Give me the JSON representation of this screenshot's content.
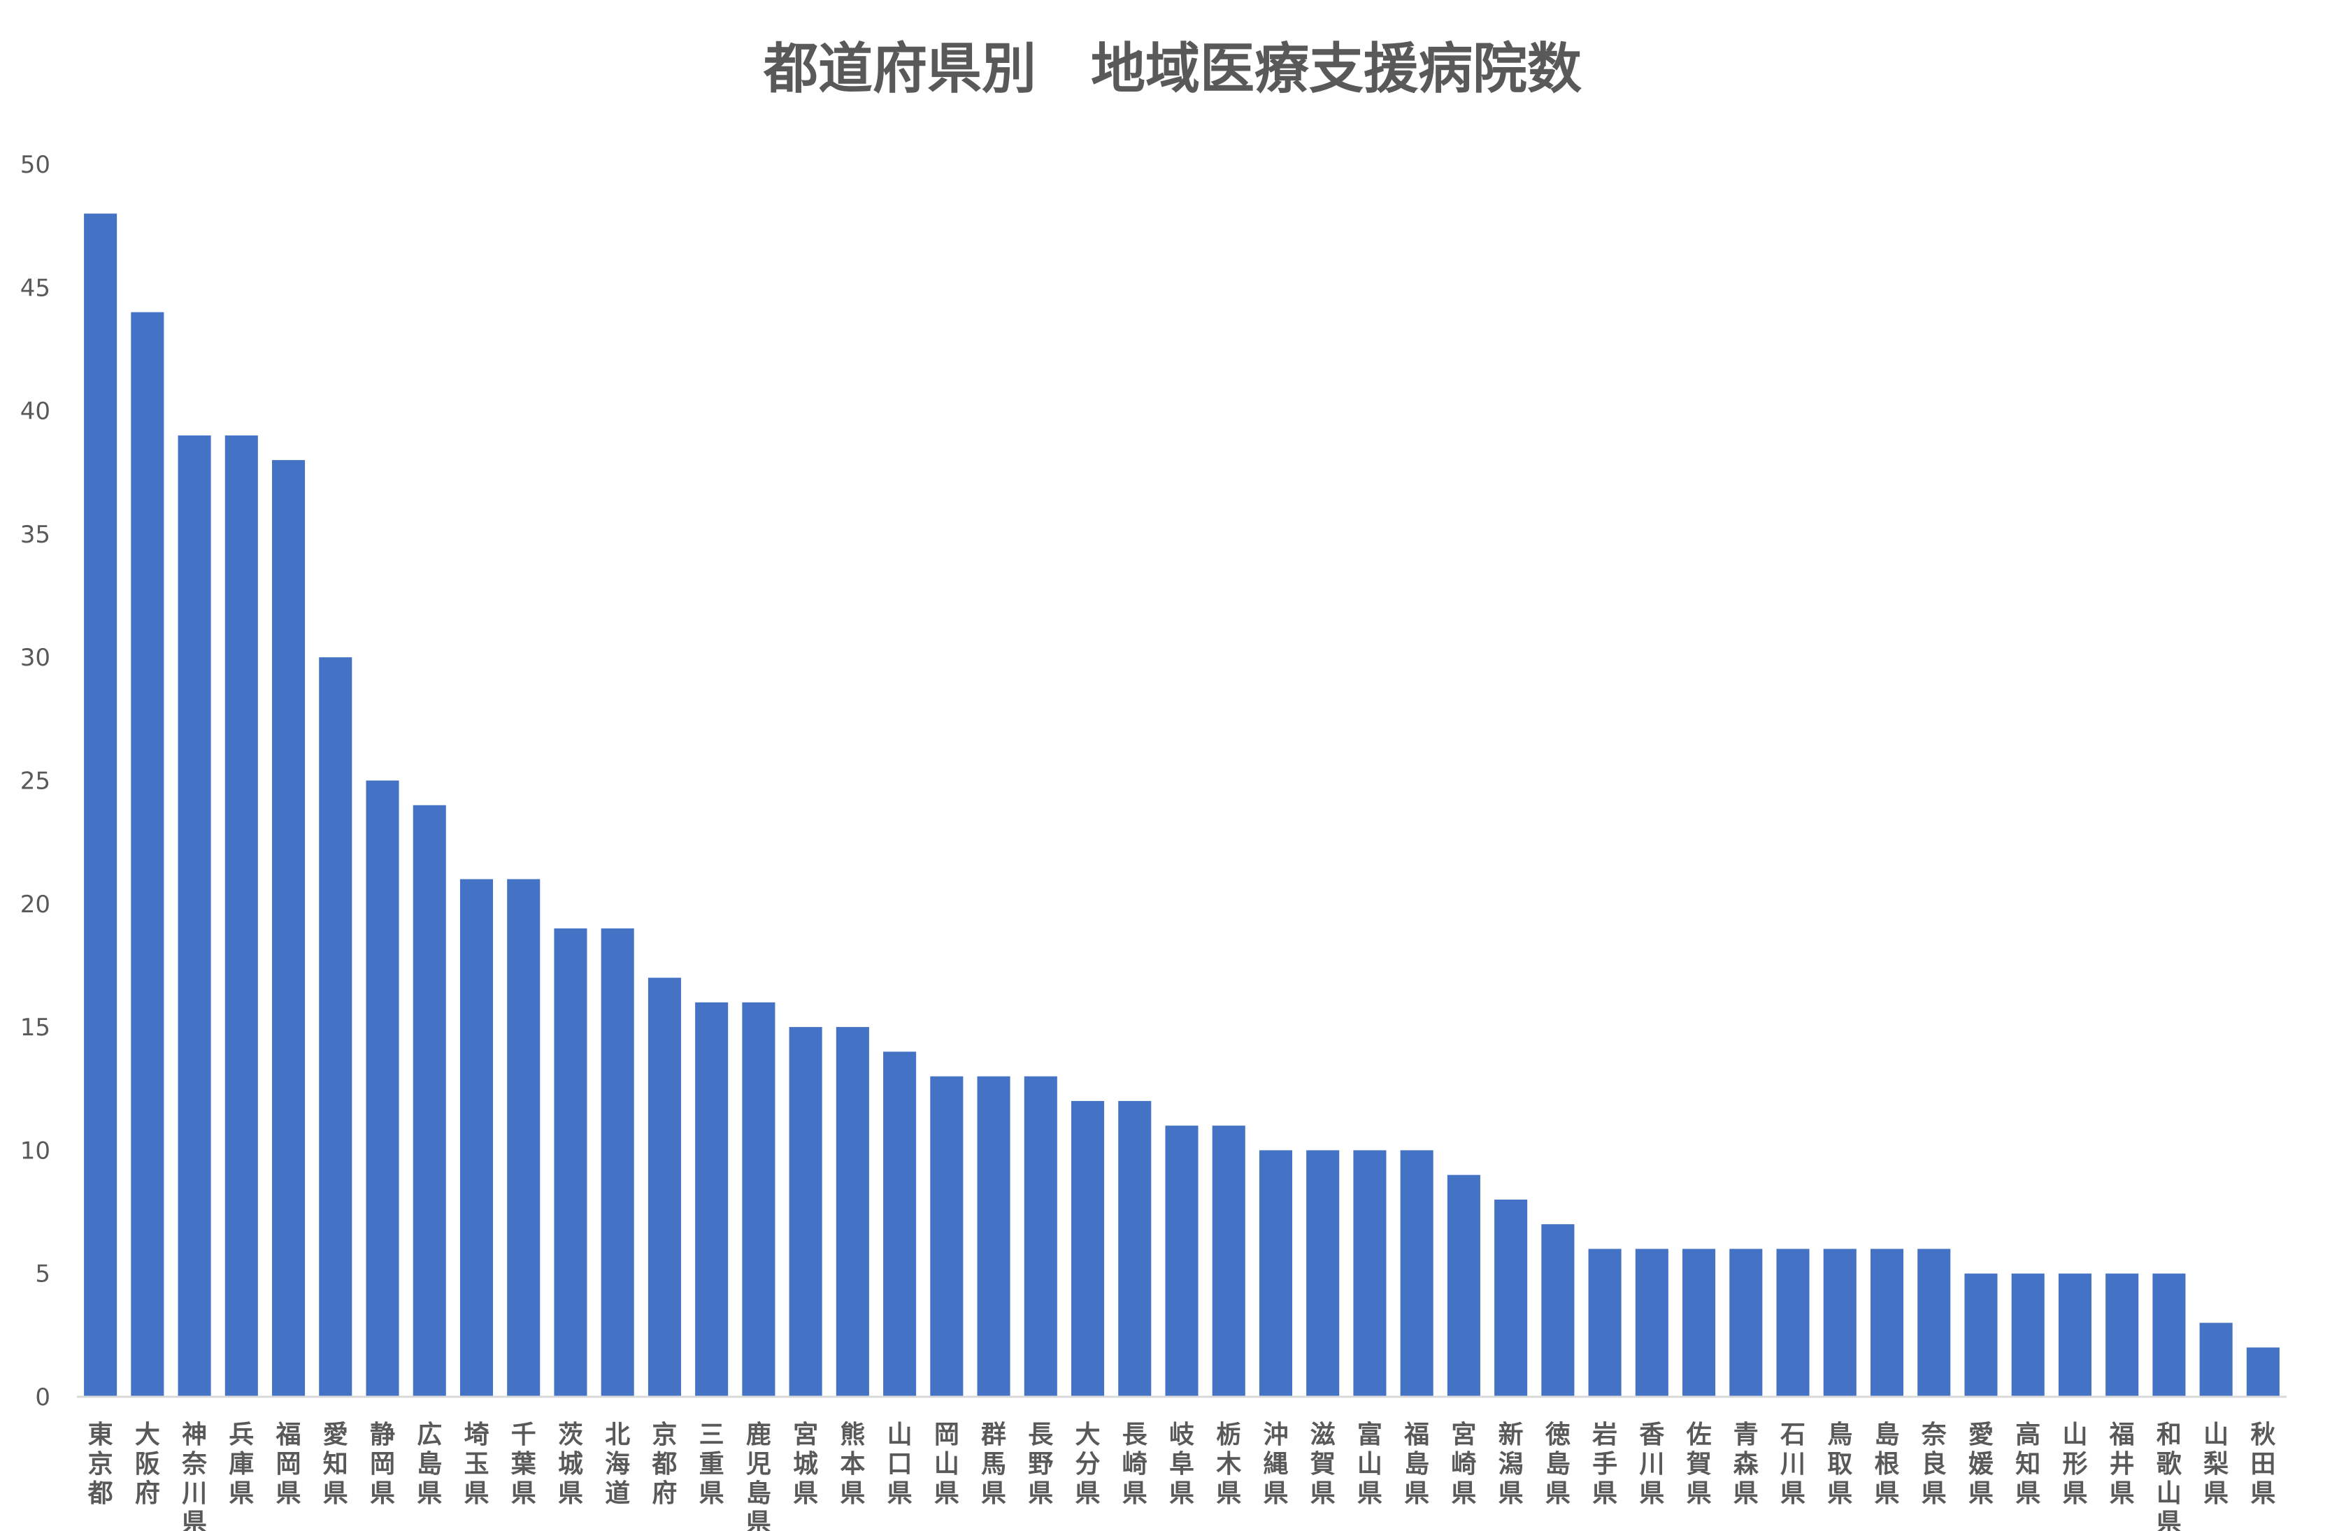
{
  "chart_data": {
    "type": "bar",
    "title": "都道府県別　地域医療支援病院数",
    "xlabel": "",
    "ylabel": "",
    "ylim": [
      0,
      50
    ],
    "yticks": [
      0,
      5,
      10,
      15,
      20,
      25,
      30,
      35,
      40,
      45,
      50
    ],
    "grid": false,
    "legend": "none",
    "bar_color": "#4472C4",
    "categories": [
      "東京都",
      "大阪府",
      "神奈川県",
      "兵庫県",
      "福岡県",
      "愛知県",
      "静岡県",
      "広島県",
      "埼玉県",
      "千葉県",
      "茨城県",
      "北海道",
      "京都府",
      "三重県",
      "鹿児島県",
      "宮城県",
      "熊本県",
      "山口県",
      "岡山県",
      "群馬県",
      "長野県",
      "大分県",
      "長崎県",
      "岐阜県",
      "栃木県",
      "沖縄県",
      "滋賀県",
      "富山県",
      "福島県",
      "宮崎県",
      "新潟県",
      "徳島県",
      "岩手県",
      "香川県",
      "佐賀県",
      "青森県",
      "石川県",
      "鳥取県",
      "島根県",
      "奈良県",
      "愛媛県",
      "高知県",
      "山形県",
      "福井県",
      "和歌山県",
      "山梨県",
      "秋田県"
    ],
    "values": [
      48,
      44,
      39,
      39,
      38,
      30,
      25,
      24,
      21,
      21,
      19,
      19,
      17,
      16,
      16,
      15,
      15,
      14,
      13,
      13,
      13,
      12,
      12,
      11,
      11,
      10,
      10,
      10,
      10,
      9,
      8,
      7,
      6,
      6,
      6,
      6,
      6,
      6,
      6,
      6,
      5,
      5,
      5,
      5,
      5,
      3,
      2
    ]
  }
}
